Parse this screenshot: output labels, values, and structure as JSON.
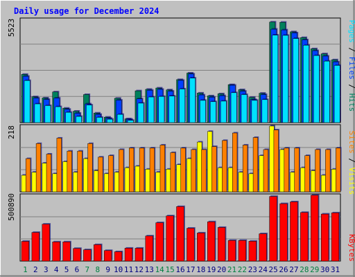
{
  "title": "Daily usage for December 2024",
  "colors": {
    "background": "#c0c0c0",
    "frame": "#808080",
    "title": "#0000ff",
    "hits": "#00805c",
    "files": "#0040ff",
    "pages": "#00e0ff",
    "visits": "#ffff00",
    "sites": "#ff8000",
    "kbytes": "#ff0000",
    "weekend_label": "#008040",
    "day_label": "#000080"
  },
  "chart_data": [
    {
      "type": "bar",
      "title": "Daily usage for December 2024",
      "categories": [
        "1",
        "2",
        "3",
        "4",
        "5",
        "6",
        "7",
        "8",
        "9",
        "10",
        "11",
        "12",
        "13",
        "14",
        "15",
        "16",
        "17",
        "18",
        "19",
        "20",
        "21",
        "22",
        "23",
        "24",
        "25",
        "26",
        "27",
        "28",
        "29",
        "30",
        "31"
      ],
      "weekend_days": [
        "1",
        "7",
        "8",
        "14",
        "15",
        "21",
        "22",
        "28",
        "29"
      ],
      "ylabel": "Pages / Files / Hits",
      "ylim": [
        0,
        5523
      ],
      "max_label": "5523",
      "series": [
        {
          "name": "Hits",
          "values": [
            2580,
            1380,
            1320,
            1640,
            770,
            610,
            1500,
            510,
            290,
            1300,
            200,
            1700,
            1780,
            1850,
            1750,
            2300,
            2650,
            1580,
            1430,
            1540,
            2030,
            1760,
            1350,
            1570,
            5380,
            5370,
            4860,
            4550,
            3950,
            3680,
            3360
          ]
        },
        {
          "name": "Files",
          "values": [
            2480,
            1310,
            1240,
            1310,
            710,
            500,
            1000,
            440,
            230,
            1200,
            180,
            1270,
            1730,
            1780,
            1680,
            2260,
            2600,
            1480,
            1360,
            1440,
            2000,
            1680,
            1230,
            1500,
            5000,
            4960,
            4800,
            4430,
            3850,
            3560,
            3250
          ]
        },
        {
          "name": "Pages",
          "values": [
            2250,
            1000,
            910,
            850,
            550,
            330,
            940,
            280,
            180,
            440,
            120,
            1040,
            1370,
            1400,
            1420,
            1800,
            2380,
            1190,
            1120,
            1150,
            1600,
            1500,
            1190,
            1230,
            4680,
            4670,
            4500,
            4140,
            3590,
            3290,
            3060
          ]
        }
      ]
    },
    {
      "type": "bar",
      "categories": [
        "1",
        "2",
        "3",
        "4",
        "5",
        "6",
        "7",
        "8",
        "9",
        "10",
        "11",
        "12",
        "13",
        "14",
        "15",
        "16",
        "17",
        "18",
        "19",
        "20",
        "21",
        "22",
        "23",
        "24",
        "25",
        "26",
        "27",
        "28",
        "29",
        "30",
        "31"
      ],
      "ylabel": "Sites / Visits",
      "ylim": [
        0,
        218
      ],
      "max_label": "218",
      "series": [
        {
          "name": "Visits",
          "values": [
            55,
            65,
            95,
            60,
            100,
            65,
            110,
            70,
            60,
            65,
            80,
            85,
            75,
            65,
            75,
            90,
            110,
            165,
            200,
            80,
            80,
            65,
            60,
            120,
            218,
            140,
            65,
            80,
            70,
            55,
            75
          ]
        },
        {
          "name": "Sites",
          "values": [
            110,
            160,
            125,
            178,
            135,
            135,
            160,
            115,
            120,
            140,
            145,
            145,
            145,
            155,
            130,
            145,
            140,
            140,
            150,
            170,
            195,
            155,
            180,
            140,
            205,
            145,
            145,
            120,
            140,
            140,
            145
          ]
        }
      ]
    },
    {
      "type": "bar",
      "categories": [
        "1",
        "2",
        "3",
        "4",
        "5",
        "6",
        "7",
        "8",
        "9",
        "10",
        "11",
        "12",
        "13",
        "14",
        "15",
        "16",
        "17",
        "18",
        "19",
        "20",
        "21",
        "22",
        "23",
        "24",
        "25",
        "26",
        "27",
        "28",
        "29",
        "30",
        "31"
      ],
      "ylabel": "KBytes",
      "ylim": [
        0,
        500890
      ],
      "max_label": "500890",
      "series": [
        {
          "name": "KBytes",
          "values": [
            150000,
            218000,
            281000,
            146000,
            146000,
            96000,
            86000,
            125000,
            80000,
            71000,
            98000,
            98000,
            191000,
            292000,
            344000,
            415000,
            250000,
            214000,
            299000,
            256000,
            157000,
            157000,
            151000,
            208000,
            492000,
            437000,
            451000,
            370000,
            500890,
            358000,
            367000
          ]
        }
      ]
    }
  ]
}
